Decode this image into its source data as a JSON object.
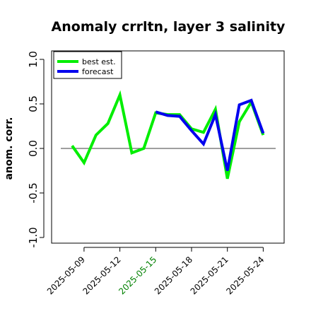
{
  "chart_data": {
    "type": "line",
    "title": "Anomaly crrltn, layer 3 salinity",
    "ylabel": "anom. corr.",
    "xlabel": "",
    "ylim": [
      -1.0,
      1.0
    ],
    "yticks": [
      "-1.0",
      "-0.5",
      "0.0",
      "0.5",
      "1.0"
    ],
    "reference_line": 0.0,
    "x": [
      "2025-05-08",
      "2025-05-09",
      "2025-05-10",
      "2025-05-11",
      "2025-05-12",
      "2025-05-13",
      "2025-05-14",
      "2025-05-15",
      "2025-05-16",
      "2025-05-17",
      "2025-05-18",
      "2025-05-19",
      "2025-05-20",
      "2025-05-21",
      "2025-05-22",
      "2025-05-23",
      "2025-05-24"
    ],
    "xtick_labels": [
      {
        "date": "2025-05-09",
        "label": "2025-05-09",
        "color": "#000000"
      },
      {
        "date": "2025-05-12",
        "label": "2025-05-12",
        "color": "#000000"
      },
      {
        "date": "2025-05-15",
        "label": "2025-05-15",
        "color": "#008000"
      },
      {
        "date": "2025-05-18",
        "label": "2025-05-18",
        "color": "#000000"
      },
      {
        "date": "2025-05-21",
        "label": "2025-05-21",
        "color": "#000000"
      },
      {
        "date": "2025-05-24",
        "label": "2025-05-24",
        "color": "#000000"
      }
    ],
    "series": [
      {
        "name": "best est.",
        "color": "#00ee00",
        "x": [
          "2025-05-08",
          "2025-05-09",
          "2025-05-10",
          "2025-05-11",
          "2025-05-12",
          "2025-05-13",
          "2025-05-14",
          "2025-05-15",
          "2025-05-16",
          "2025-05-17",
          "2025-05-18",
          "2025-05-19",
          "2025-05-20",
          "2025-05-21",
          "2025-05-22",
          "2025-05-23",
          "2025-05-24"
        ],
        "values": [
          0.03,
          -0.16,
          0.15,
          0.28,
          0.6,
          -0.05,
          0.0,
          0.4,
          0.38,
          0.38,
          0.22,
          0.18,
          0.44,
          -0.34,
          0.3,
          0.52,
          0.15
        ]
      },
      {
        "name": "forecast",
        "color": "#0000ee",
        "x": [
          "2025-05-15",
          "2025-05-16",
          "2025-05-17",
          "2025-05-18",
          "2025-05-19",
          "2025-05-20",
          "2025-05-21",
          "2025-05-22",
          "2025-05-23",
          "2025-05-24"
        ],
        "values": [
          0.41,
          0.37,
          0.36,
          0.2,
          0.05,
          0.38,
          -0.25,
          0.49,
          0.54,
          0.17
        ]
      }
    ],
    "legend": {
      "position": "top-left",
      "entries": [
        "best est.",
        "forecast"
      ]
    }
  }
}
